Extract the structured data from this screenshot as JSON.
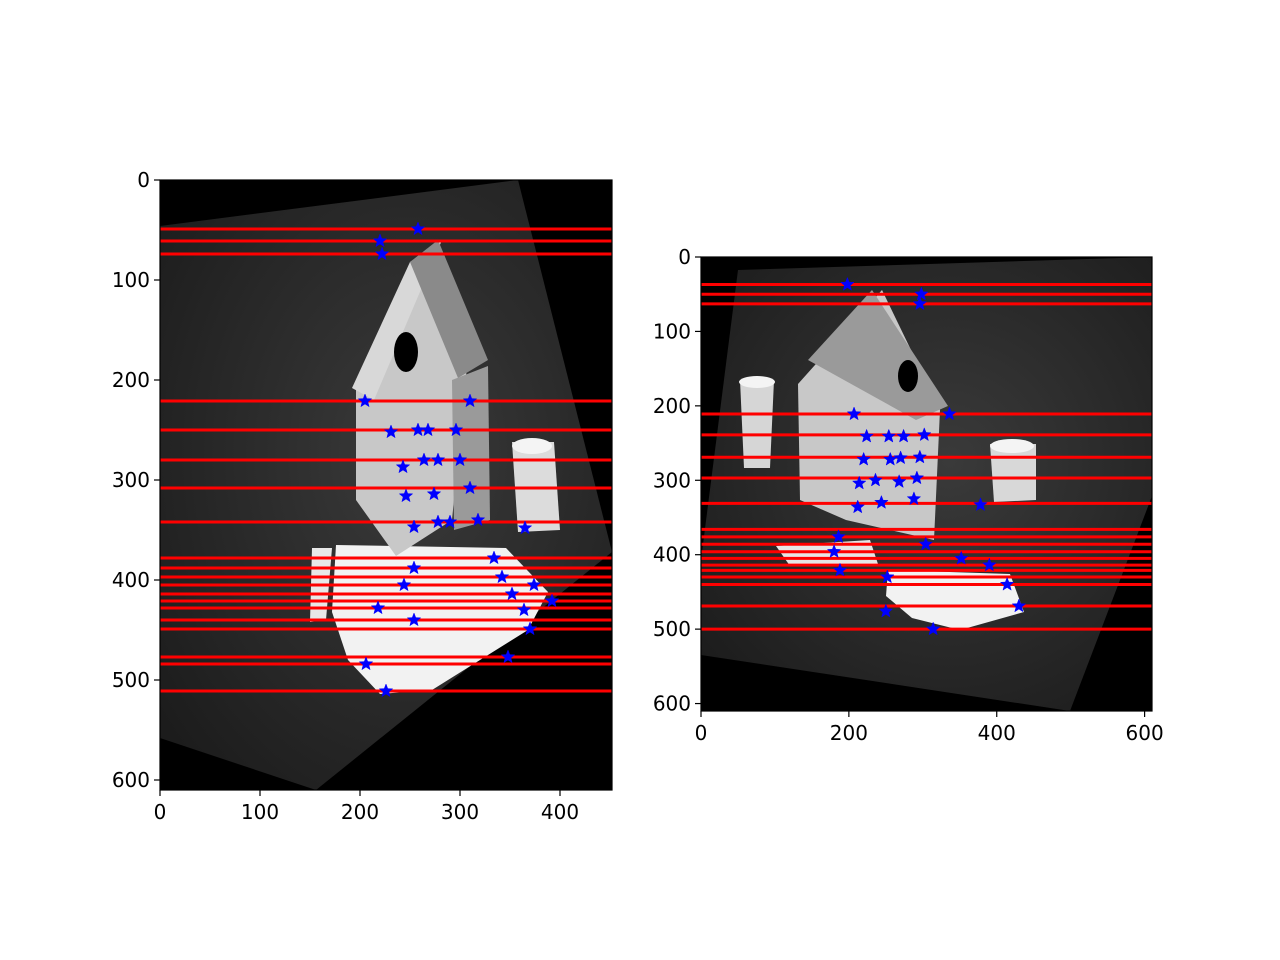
{
  "chart_data": [
    {
      "type": "scatter",
      "title": "",
      "xlabel": "",
      "ylabel": "",
      "xlim": [
        0,
        452
      ],
      "ylim": [
        610,
        0
      ],
      "xticks": [
        "0",
        "100",
        "200",
        "300",
        "400"
      ],
      "yticks": [
        "0",
        "100",
        "200",
        "300",
        "400",
        "500",
        "600"
      ],
      "background": "grayscale rectified stereo image (left view)",
      "epipolar_lines_y": [
        49,
        61,
        74,
        221,
        250,
        280,
        308,
        342,
        378,
        388,
        397,
        405,
        414,
        421,
        428,
        440,
        449,
        477,
        484,
        511
      ],
      "series": [
        {
          "marker": "star",
          "color": "#0000ff",
          "x": [
            258,
            220,
            222,
            205,
            310,
            231,
            258,
            268,
            296,
            264,
            278,
            300,
            243,
            310,
            246,
            274,
            318,
            254,
            278,
            290,
            365,
            334,
            254,
            342,
            244,
            374,
            352,
            218,
            392,
            364,
            254,
            370,
            206,
            348,
            226
          ],
          "y": [
            49,
            61,
            74,
            221,
            221,
            252,
            250,
            250,
            250,
            280,
            280,
            280,
            287,
            308,
            316,
            314,
            340,
            347,
            342,
            342,
            348,
            378,
            388,
            397,
            405,
            405,
            414,
            428,
            421,
            430,
            440,
            449,
            484,
            477,
            511
          ]
        }
      ]
    },
    {
      "type": "scatter",
      "title": "",
      "xlabel": "",
      "ylabel": "",
      "xlim": [
        0,
        610
      ],
      "ylim": [
        610,
        0
      ],
      "xticks": [
        "0",
        "200",
        "400",
        "600"
      ],
      "yticks": [
        "0",
        "100",
        "200",
        "300",
        "400",
        "500",
        "600"
      ],
      "background": "grayscale rectified stereo image (right view)",
      "epipolar_lines_y": [
        37,
        50,
        63,
        211,
        239,
        269,
        297,
        331,
        366,
        376,
        386,
        396,
        405,
        414,
        421,
        430,
        440,
        469,
        500
      ],
      "series": [
        {
          "marker": "star",
          "color": "#0000ff",
          "x": [
            198,
            298,
            296,
            207,
            336,
            224,
            254,
            274,
            302,
            220,
            256,
            270,
            296,
            214,
            236,
            268,
            292,
            212,
            244,
            288,
            378,
            186,
            304,
            352,
            180,
            390,
            188,
            414,
            252,
            430,
            250,
            314
          ],
          "y": [
            37,
            50,
            63,
            211,
            211,
            241,
            241,
            241,
            239,
            272,
            272,
            270,
            269,
            304,
            300,
            302,
            297,
            336,
            330,
            325,
            333,
            376,
            386,
            405,
            396,
            414,
            421,
            440,
            430,
            469,
            476,
            500
          ]
        }
      ]
    }
  ]
}
